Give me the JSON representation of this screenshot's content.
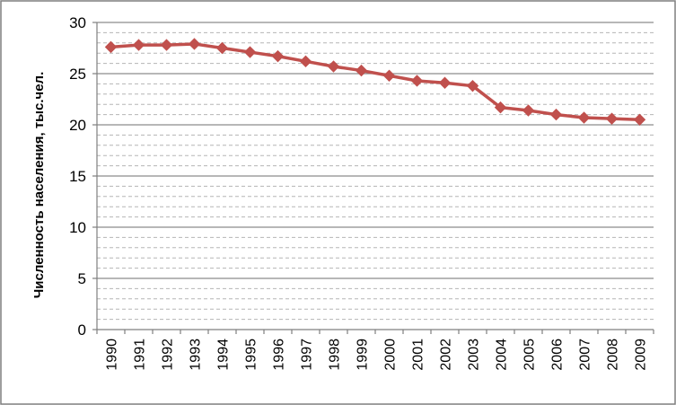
{
  "chart_data": {
    "type": "line",
    "title": "",
    "xlabel": "",
    "ylabel": "Численность населения, тыс.чел.",
    "ylim": [
      0,
      30
    ],
    "yticks": [
      "0",
      "5",
      "10",
      "15",
      "20",
      "25",
      "30"
    ],
    "grid": {
      "major": true,
      "minor": true
    },
    "legend": "none",
    "categories": [
      "1990",
      "1991",
      "1992",
      "1993",
      "1994",
      "1995",
      "1996",
      "1997",
      "1998",
      "1999",
      "2000",
      "2001",
      "2002",
      "2003",
      "2004",
      "2005",
      "2006",
      "2007",
      "2008",
      "2009"
    ],
    "series": [
      {
        "values": [
          27.6,
          27.8,
          27.8,
          27.9,
          27.5,
          27.1,
          26.7,
          26.2,
          25.7,
          25.3,
          24.8,
          24.3,
          24.1,
          23.8,
          21.7,
          21.4,
          21.0,
          20.7,
          20.6,
          20.5
        ],
        "color": "#C0504D"
      }
    ]
  }
}
